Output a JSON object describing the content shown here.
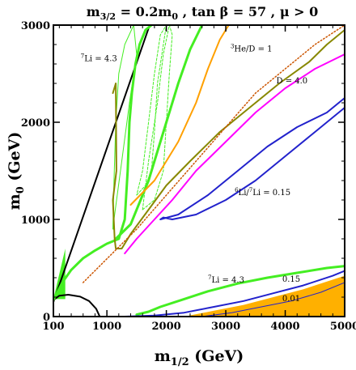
{
  "chart_data": {
    "type": "line",
    "title": "m3/2 = 0.2m0 , tan β = 57 , μ > 0",
    "title_parts": {
      "m32": "m",
      "m32_sub": "3/2",
      "eq1": " = 0.2m",
      "m0_sub": "0",
      "rest": ", tan β = 57 , μ > 0"
    },
    "xlabel": {
      "main": "m",
      "sub": "1/2",
      "unit": " (GeV)"
    },
    "ylabel": {
      "main": "m",
      "sub": "0",
      "unit": " (GeV)"
    },
    "xlim": [
      100,
      5000
    ],
    "ylim": [
      0,
      3000
    ],
    "xticks": [
      100,
      1000,
      2000,
      3000,
      4000,
      5000
    ],
    "yticks": [
      0,
      1000,
      2000,
      3000
    ],
    "annotations": [
      {
        "id": "li7-top",
        "text_main": "Li = 4.3",
        "sup": "7",
        "x": 560,
        "y": 2630,
        "color": "#000000"
      },
      {
        "id": "he3d",
        "text_main": "He/D = 1",
        "sup": "3",
        "x": 3080,
        "y": 2730,
        "color": "#000000"
      },
      {
        "id": "d4",
        "text_main": "D = 4.0",
        "x": 3850,
        "y": 2400,
        "color": "#000000"
      },
      {
        "id": "li6li7",
        "text_main": "Li/",
        "sup": "6",
        "sup2": "7",
        "text_tail": "Li = 0.15",
        "x": 3150,
        "y": 1250,
        "color": "#000000"
      },
      {
        "id": "li7-bottom",
        "text_main": "Li = 4.3",
        "sup": "7",
        "x": 2700,
        "y": 350,
        "color": "#000000"
      },
      {
        "id": "v015",
        "text_main": "0.15",
        "x": 3950,
        "y": 360,
        "color": "#000000"
      },
      {
        "id": "v001",
        "text_main": "0.01",
        "x": 3950,
        "y": 160,
        "color": "#000000"
      }
    ],
    "series": [
      {
        "key": "black_line",
        "color": "#000000",
        "width": 2,
        "x": [
          100,
          1720
        ],
        "y": [
          150,
          3000
        ]
      },
      {
        "key": "black_arc",
        "color": "#000000",
        "width": 2,
        "x": [
          100,
          200,
          350,
          550,
          700,
          820,
          880
        ],
        "y": [
          170,
          215,
          225,
          205,
          160,
          80,
          0
        ]
      },
      {
        "key": "green_left",
        "color": "#44ee22",
        "width": 3,
        "x": [
          100,
          250,
          400,
          600,
          800,
          1000,
          1200,
          1300,
          1350,
          1380,
          1420,
          1480,
          1550,
          1650,
          1750
        ],
        "y": [
          170,
          350,
          480,
          600,
          680,
          750,
          800,
          1000,
          1500,
          2000,
          2300,
          2600,
          2800,
          2950,
          3000
        ]
      },
      {
        "key": "green_right",
        "color": "#44ee22",
        "width": 3,
        "x": [
          1150,
          1400,
          1700,
          2000,
          2200,
          2400,
          2600
        ],
        "y": [
          800,
          950,
          1400,
          2000,
          2400,
          2750,
          3000
        ]
      },
      {
        "key": "green_thin",
        "color": "#44ee22",
        "width": 1,
        "x": [
          1100,
          1120,
          1150,
          1200,
          1300,
          1450,
          1500,
          1380,
          1250,
          1120,
          1110
        ],
        "y": [
          900,
          1400,
          2000,
          2500,
          2800,
          3000,
          2700,
          2200,
          1600,
          1000,
          900
        ]
      },
      {
        "key": "green_dashed_1",
        "color": "#44ee22",
        "width": 1,
        "dash": "3,2",
        "x": [
          1600,
          1800,
          1950,
          2000,
          2050,
          2100,
          2050,
          1950,
          1850,
          1700,
          1600
        ],
        "y": [
          1100,
          1200,
          1500,
          2000,
          2500,
          2900,
          3000,
          2700,
          2200,
          1600,
          1100
        ]
      },
      {
        "key": "green_dashed_2",
        "color": "#44ee22",
        "width": 1,
        "dash": "3,2",
        "x": [
          1500,
          1650,
          1750,
          1800,
          1850,
          1950,
          2000,
          1900,
          1800,
          1700,
          1600,
          1500
        ],
        "y": [
          1250,
          1350,
          1500,
          1900,
          2400,
          2800,
          3000,
          2900,
          2500,
          2000,
          1500,
          1250
        ]
      },
      {
        "key": "green_bottom",
        "color": "#44ee22",
        "width": 3,
        "x": [
          1500,
          1700,
          1900,
          2300,
          2700,
          3200,
          3700,
          4200,
          4700,
          5000
        ],
        "y": [
          20,
          50,
          100,
          180,
          260,
          340,
          400,
          450,
          500,
          520
        ]
      },
      {
        "key": "green_fill_tri",
        "color": "#44ee22",
        "width": 0,
        "fill": "#44ee22",
        "x": [
          100,
          300,
          300,
          100
        ],
        "y": [
          180,
          700,
          180,
          180
        ]
      },
      {
        "key": "olive",
        "color": "#888800",
        "width": 2,
        "x": [
          1100,
          1150,
          1160,
          1100,
          1130,
          1150,
          1250,
          1400,
          1700,
          2000,
          2400,
          2900,
          3400,
          3900,
          4400,
          4700,
          5000
        ],
        "y": [
          2300,
          2400,
          1500,
          1200,
          800,
          700,
          700,
          850,
          1100,
          1350,
          1600,
          1900,
          2150,
          2400,
          2620,
          2800,
          2950
        ]
      },
      {
        "key": "orange",
        "color": "#ffa000",
        "width": 2,
        "x": [
          1400,
          1800,
          2200,
          2500,
          2700,
          2900,
          3050
        ],
        "y": [
          1150,
          1400,
          1800,
          2200,
          2550,
          2850,
          3000
        ]
      },
      {
        "key": "orange_dotted",
        "color": "#cc5500",
        "width": 1.5,
        "dash": "1.5,2.5",
        "x": [
          600,
          1500,
          2500,
          3500,
          4500,
          5000
        ],
        "y": [
          350,
          900,
          1600,
          2300,
          2800,
          3000
        ]
      },
      {
        "key": "magenta",
        "color": "#ff00ff",
        "width": 2,
        "x": [
          1300,
          1500,
          1800,
          2100,
          2500,
          3000,
          3500,
          4000,
          4500,
          5000
        ],
        "y": [
          650,
          800,
          1000,
          1200,
          1500,
          1800,
          2100,
          2350,
          2550,
          2700
        ]
      },
      {
        "key": "blue_upper",
        "color": "#2222cc",
        "width": 2,
        "x": [
          1900,
          2200,
          2700,
          3200,
          3700,
          4200,
          4700,
          5000,
          5000,
          4500,
          4000,
          3500,
          3000,
          2500,
          2100,
          1950,
          1900
        ],
        "y": [
          1000,
          1050,
          1250,
          1500,
          1750,
          1950,
          2100,
          2250,
          2150,
          1900,
          1650,
          1400,
          1200,
          1050,
          1000,
          1020,
          1000
        ]
      },
      {
        "key": "blue_bottom",
        "color": "#2222cc",
        "width": 2,
        "x": [
          1300,
          1800,
          2300,
          2800,
          3300,
          3800,
          4300,
          4800,
          5000
        ],
        "y": [
          0,
          10,
          40,
          100,
          160,
          240,
          320,
          420,
          470
        ]
      },
      {
        "key": "orange_fill",
        "color": "#ffb000",
        "width": 0,
        "fill": "#ffb000",
        "x": [
          2300,
          2800,
          3300,
          3800,
          4300,
          4800,
          5000,
          5000,
          2300
        ],
        "y": [
          0,
          60,
          120,
          200,
          280,
          380,
          420,
          0,
          0
        ]
      },
      {
        "key": "blue_thin",
        "color": "#2222cc",
        "width": 1,
        "x": [
          2600,
          3100,
          3600,
          4100,
          4600,
          5000
        ],
        "y": [
          0,
          40,
          100,
          160,
          250,
          350
        ]
      }
    ]
  }
}
